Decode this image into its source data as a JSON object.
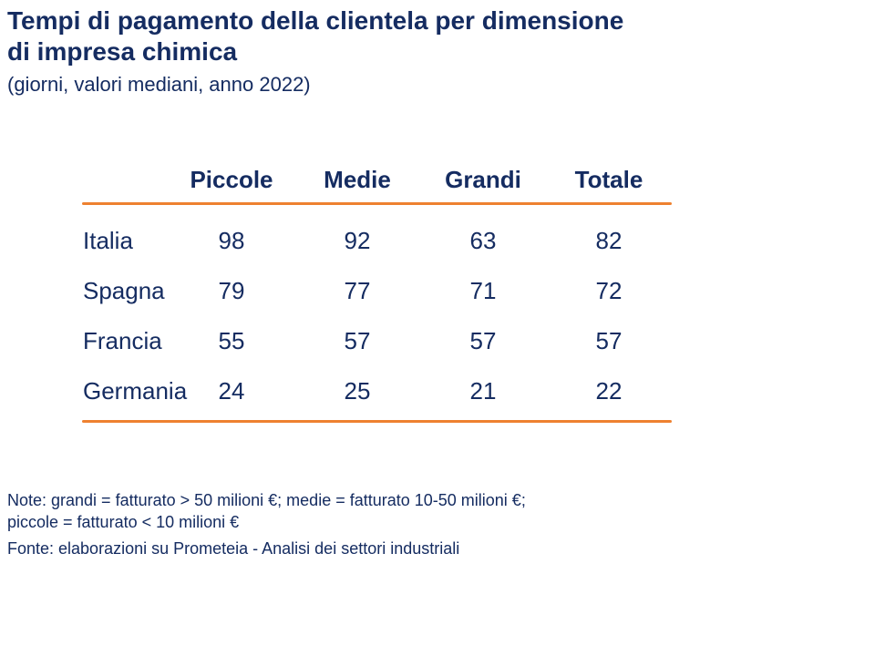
{
  "slide": {
    "title_line1": "Tempi di pagamento della clientela per dimensione",
    "title_line2": "di impresa chimica",
    "subtitle": "(giorni, valori mediani, anno 2022)"
  },
  "table": {
    "columns": [
      "Piccole",
      "Medie",
      "Grandi",
      "Totale"
    ],
    "rows": [
      {
        "label": "Italia",
        "values": [
          98,
          92,
          63,
          82
        ]
      },
      {
        "label": "Spagna",
        "values": [
          79,
          77,
          71,
          72
        ]
      },
      {
        "label": "Francia",
        "values": [
          55,
          57,
          57,
          57
        ]
      },
      {
        "label": "Germania",
        "values": [
          24,
          25,
          21,
          22
        ]
      }
    ]
  },
  "notes": {
    "note_line1": "Note: grandi = fatturato > 50 milioni €; medie = fatturato 10-50 milioni €;",
    "note_line2": "piccole = fatturato < 10 milioni €",
    "source": "Fonte: elaborazioni su Prometeia - Analisi dei settori industriali"
  },
  "colors": {
    "navy_text": "#152C61",
    "orange_rule": "#EE8130",
    "background": "#FFFFFF"
  },
  "chart_data": {
    "type": "table",
    "title": "Tempi di pagamento della clientela per dimensione di impresa chimica",
    "subtitle": "(giorni, valori mediani, anno 2022)",
    "columns": [
      "Piccole",
      "Medie",
      "Grandi",
      "Totale"
    ],
    "row_labels": [
      "Italia",
      "Spagna",
      "Francia",
      "Germania"
    ],
    "values": [
      [
        98,
        92,
        63,
        82
      ],
      [
        79,
        77,
        71,
        72
      ],
      [
        55,
        57,
        57,
        57
      ],
      [
        24,
        25,
        21,
        22
      ]
    ],
    "unit": "giorni",
    "notes": "Note: grandi = fatturato > 50 milioni €; medie = fatturato 10-50 milioni €; piccole = fatturato < 10 milioni €",
    "source": "Fonte: elaborazioni su Prometeia - Analisi dei settori industriali"
  }
}
